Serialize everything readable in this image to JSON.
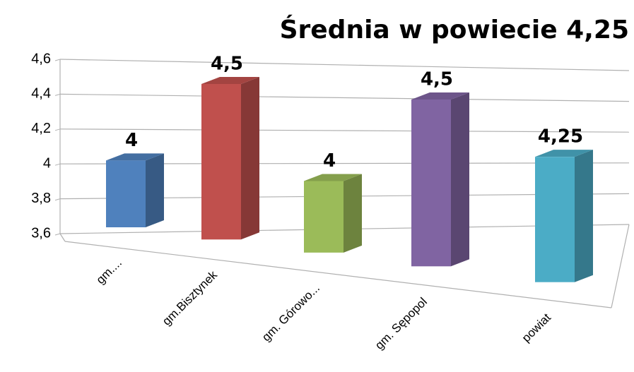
{
  "chart_data": {
    "type": "bar3d",
    "title": "Średnia w powiecie 4,25",
    "categories": [
      "gm....",
      "gm.Bisztynek",
      "gm. Górowo...",
      "gm. Sępopol",
      "powiat"
    ],
    "values": [
      4,
      4.5,
      4,
      4.5,
      4.25
    ],
    "value_labels": [
      "4",
      "4,5",
      "4",
      "4,5",
      "4,25"
    ],
    "colors": [
      "#4f81bd",
      "#c0504d",
      "#9bbb59",
      "#8064a2",
      "#4bacc6"
    ],
    "ylim": [
      3.6,
      4.6
    ],
    "yticks": [
      {
        "value": 3.6,
        "label": "3,6"
      },
      {
        "value": 3.8,
        "label": "3,8"
      },
      4,
      {
        "value": 4.2,
        "label": "4,2"
      },
      {
        "value": 4.4,
        "label": "4,4"
      },
      {
        "value": 4.6,
        "label": "4,6"
      }
    ],
    "grid": true
  }
}
